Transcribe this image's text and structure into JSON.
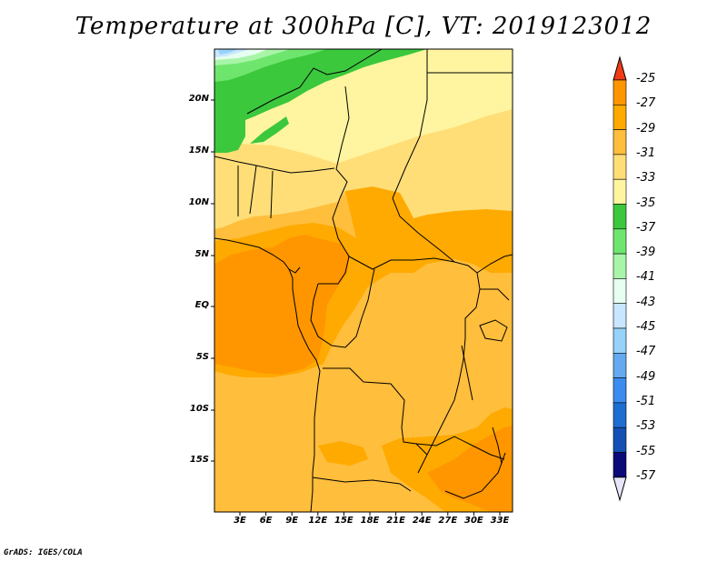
{
  "title": "Temperature at 300hPa [C], VT: 2019123012",
  "credit": "GrADS: IGES/COLA",
  "lat_labels": [
    "20N",
    "15N",
    "10N",
    "5N",
    "EQ",
    "5S",
    "10S",
    "15S"
  ],
  "lon_labels": [
    "3E",
    "6E",
    "9E",
    "12E",
    "15E",
    "18E",
    "21E",
    "24E",
    "27E",
    "30E",
    "33E"
  ],
  "colorbar": {
    "labels": [
      "-25",
      "-27",
      "-29",
      "-31",
      "-33",
      "-35",
      "-37",
      "-39",
      "-41",
      "-43",
      "-45",
      "-47",
      "-49",
      "-51",
      "-53",
      "-55",
      "-57"
    ],
    "colors": [
      "#ff5a00",
      "#ff9600",
      "#ffaa00",
      "#ffbe3c",
      "#ffde78",
      "#fff5a0",
      "#3cc83c",
      "#6ee66e",
      "#a8f5a8",
      "#e6fff0",
      "#c8e6ff",
      "#96d2fa",
      "#64aaf0",
      "#3c8cf0",
      "#1e6ed2",
      "#1450b4",
      "#0a0a78"
    ],
    "top_arrow_color": "#f03c14",
    "bottom_arrow_color": "#e6e6f8"
  },
  "field_colors": {
    "c27": "#ff9600",
    "c29": "#ffaa00",
    "c31": "#ffbe3c",
    "c33": "#ffde78",
    "c35": "#fff5a0",
    "c37": "#3cc83c",
    "c39": "#6ee66e",
    "c41": "#a8f5a8",
    "c43": "#e6fff0",
    "c45": "#c8e6ff",
    "c47": "#96d2fa"
  }
}
